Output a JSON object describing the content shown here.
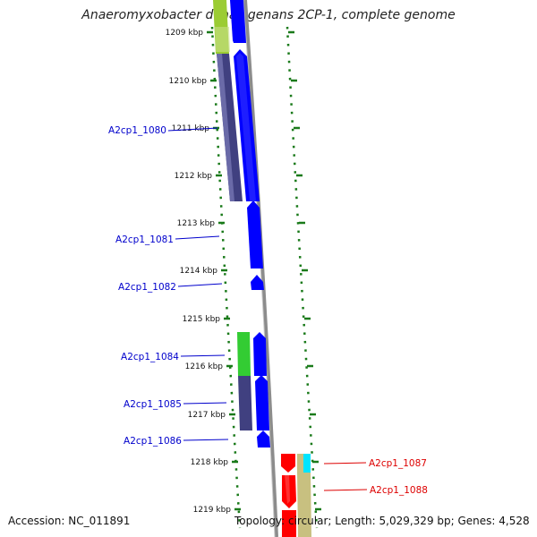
{
  "title": "Anaeromyxobacter dehalogenans 2CP-1, complete genome",
  "footer": {
    "accession": "Accession: NC_011891",
    "topology": "Topology: circular; Length: 5,029,329 bp; Genes: 4,528"
  },
  "colors": {
    "background": "#ffffff",
    "tick": "#1a7a1a",
    "backbone": "#8c8c8c",
    "cds_forward": "#0000ff",
    "cds_reverse": "#ff0000",
    "label_forward": "#0000cc",
    "label_reverse": "#dd0000",
    "cog_green": "#33cc33",
    "cog_olive": "#9bcc33",
    "cog_purple": "#404080",
    "cog_khaki": "#c8c080",
    "cog_cyan": "#00e5ff"
  },
  "scale_labels": [
    "1209 kbp",
    "1210 kbp",
    "1211 kbp",
    "1212 kbp",
    "1213 kbp",
    "1214 kbp",
    "1215 kbp",
    "1216 kbp",
    "1217 kbp",
    "1218 kbp",
    "1219 kbp"
  ],
  "genes": [
    {
      "label": "A2cp1_1080",
      "strand": "forward"
    },
    {
      "label": "A2cp1_1081",
      "strand": "forward"
    },
    {
      "label": "A2cp1_1082",
      "strand": "forward"
    },
    {
      "label": "A2cp1_1084",
      "strand": "forward"
    },
    {
      "label": "A2cp1_1085",
      "strand": "forward"
    },
    {
      "label": "A2cp1_1086",
      "strand": "forward"
    },
    {
      "label": "A2cp1_1087",
      "strand": "reverse"
    },
    {
      "label": "A2cp1_1088",
      "strand": "reverse"
    }
  ]
}
